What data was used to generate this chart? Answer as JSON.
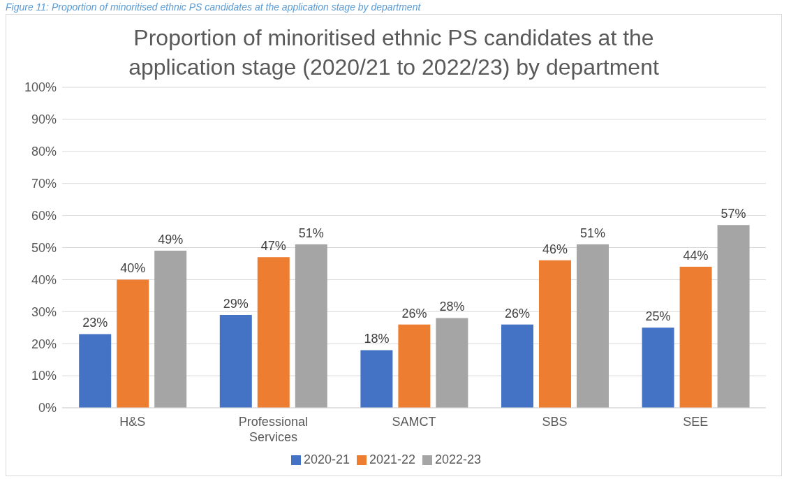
{
  "chart_data": {
    "type": "bar",
    "title": "Proportion of minoritised ethnic PS candidates at the application stage (2020/21 to 2022/23) by department",
    "annotations": [
      "Figure 11: Proportion of minoritised ethnic PS candidates at the application stage by department"
    ],
    "categories": [
      "H&S",
      "Professional Services",
      "SAMCT",
      "SBS",
      "SEE"
    ],
    "series": [
      {
        "name": "2020-21",
        "color": "#4472c4",
        "values": [
          23,
          29,
          18,
          26,
          25
        ],
        "value_labels": [
          "23%",
          "29%",
          "18%",
          "26%",
          "25%"
        ]
      },
      {
        "name": "2021-22",
        "color": "#ed7d31",
        "values": [
          40,
          47,
          26,
          46,
          44
        ],
        "value_labels": [
          "40%",
          "47%",
          "26%",
          "46%",
          "44%"
        ]
      },
      {
        "name": "2022-23",
        "color": "#a5a5a5",
        "values": [
          49,
          51,
          28,
          51,
          57
        ],
        "value_labels": [
          "49%",
          "51%",
          "28%",
          "51%",
          "57%"
        ]
      }
    ],
    "ylim": [
      0,
      100
    ],
    "yticks": [
      {
        "value": 0,
        "label": "0%"
      },
      {
        "value": 10,
        "label": "10%"
      },
      {
        "value": 20,
        "label": "20%"
      },
      {
        "value": 30,
        "label": "30%"
      },
      {
        "value": 40,
        "label": "40%"
      },
      {
        "value": 50,
        "label": "50%"
      },
      {
        "value": 60,
        "label": "60%"
      },
      {
        "value": 70,
        "label": "70%"
      },
      {
        "value": 80,
        "label": "80%"
      },
      {
        "value": 90,
        "label": "90%"
      },
      {
        "value": 100,
        "label": "100%"
      }
    ],
    "grid": "y",
    "legend": "bottom"
  }
}
